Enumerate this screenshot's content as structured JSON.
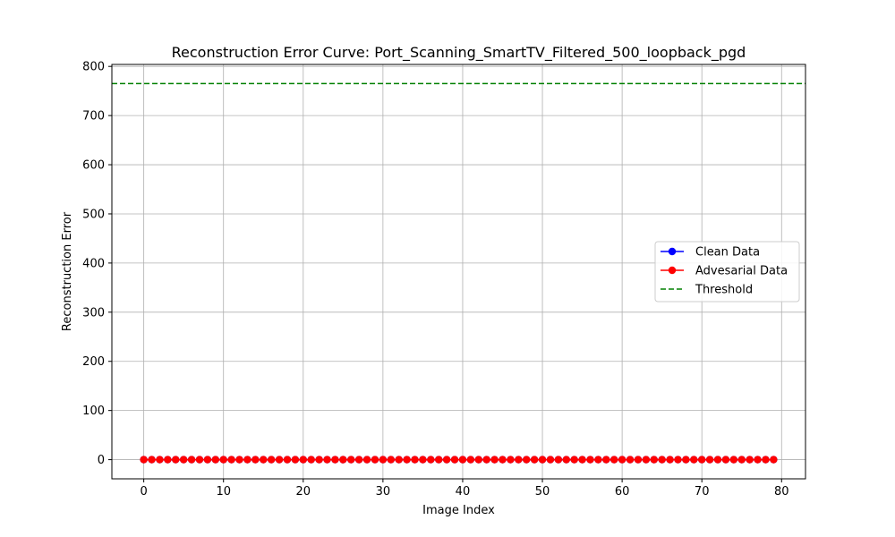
{
  "chart_data": {
    "type": "line",
    "title": "Reconstruction Error Curve: Port_Scanning_SmartTV_Filtered_500_loopback_pgd",
    "xlabel": "Image Index",
    "ylabel": "Reconstruction Error",
    "xlim": [
      -4,
      83
    ],
    "ylim": [
      -39,
      804
    ],
    "xticks": [
      0,
      10,
      20,
      30,
      40,
      50,
      60,
      70,
      80
    ],
    "yticks": [
      0,
      100,
      200,
      300,
      400,
      500,
      600,
      700,
      800
    ],
    "grid": true,
    "legend_position": "center-right",
    "series": [
      {
        "name": "Clean Data",
        "color": "#0000ff",
        "style": "line-marker",
        "x_start": 0,
        "x_end": 79,
        "value": 0
      },
      {
        "name": "Advesarial Data",
        "color": "#ff0000",
        "style": "line-marker",
        "x_start": 0,
        "x_end": 79,
        "value": 0
      }
    ],
    "threshold": {
      "name": "Threshold",
      "color": "#008000",
      "style": "dashed",
      "value": 765
    }
  }
}
